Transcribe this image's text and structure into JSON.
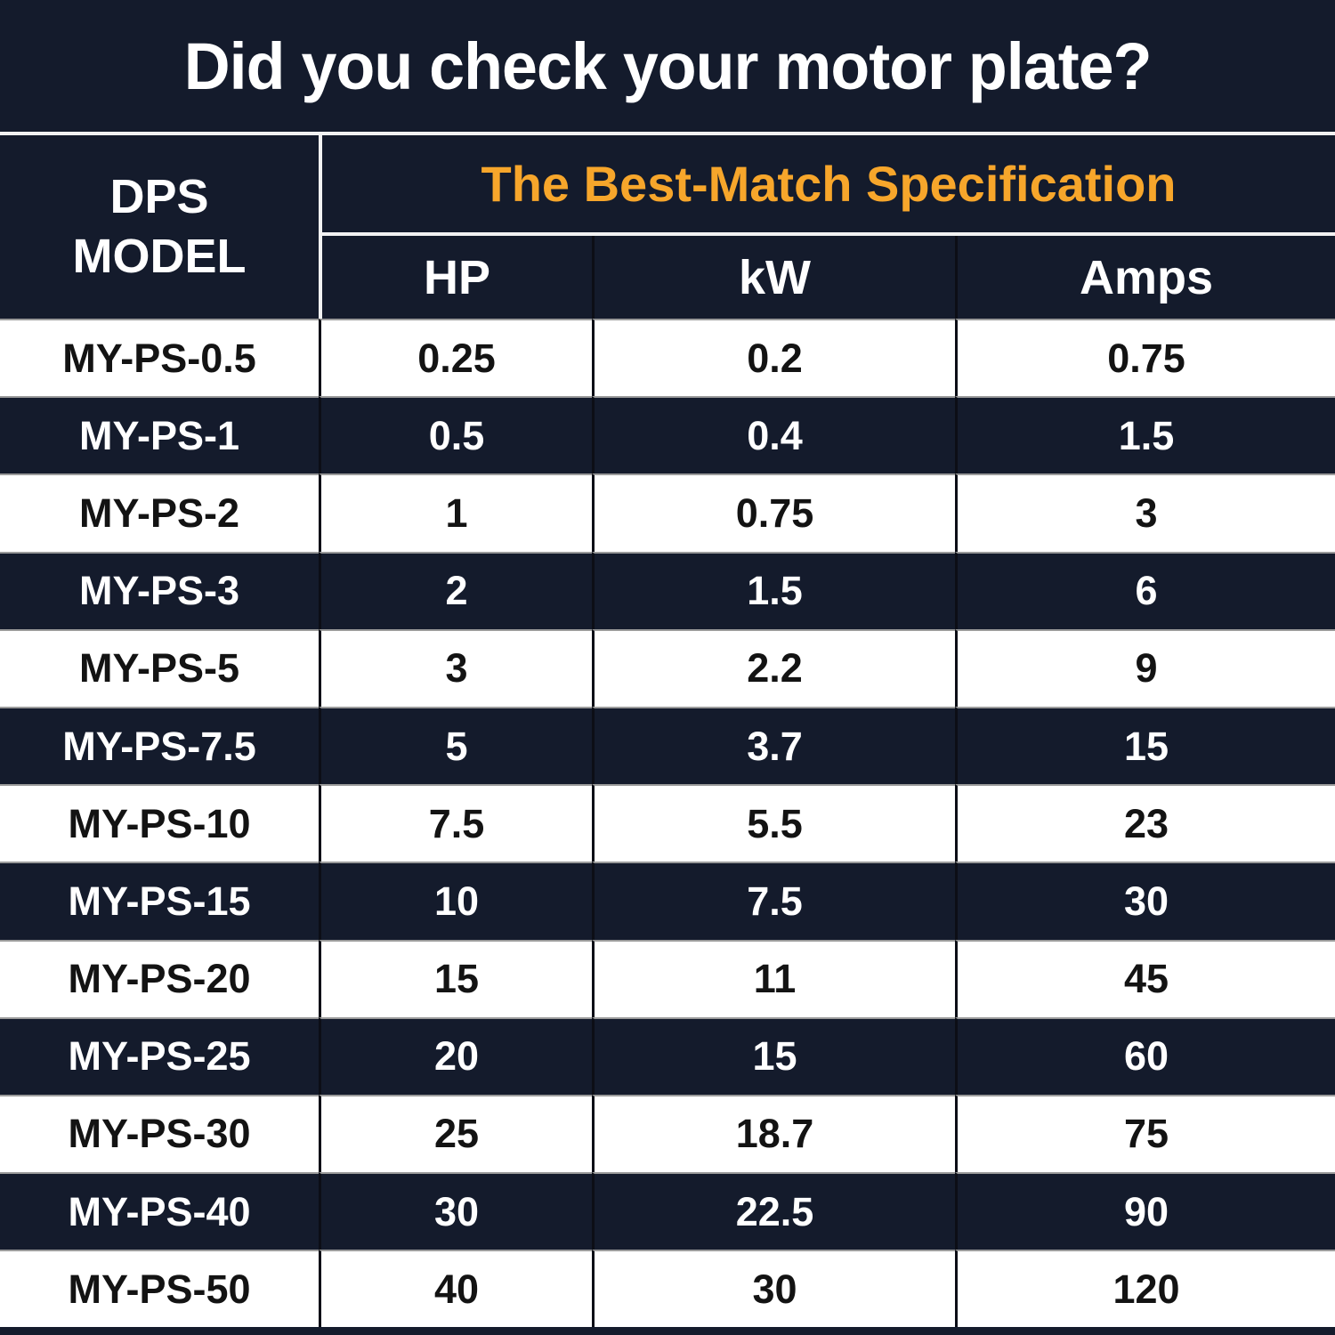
{
  "header": {
    "title": "Did you check your motor plate?"
  },
  "table": {
    "model_header": "DPS\nMODEL",
    "spec_header": "The Best-Match Specification",
    "columns": {
      "hp": "HP",
      "kw": "kW",
      "amps": "Amps"
    }
  },
  "chart_data": {
    "type": "table",
    "title": "Did you check your motor plate?",
    "group_header": "The Best-Match Specification",
    "columns": [
      "DPS MODEL",
      "HP",
      "kW",
      "Amps"
    ],
    "rows": [
      {
        "model": "MY-PS-0.5",
        "hp": "0.25",
        "kw": "0.2",
        "amps": "0.75"
      },
      {
        "model": "MY-PS-1",
        "hp": "0.5",
        "kw": "0.4",
        "amps": "1.5"
      },
      {
        "model": "MY-PS-2",
        "hp": "1",
        "kw": "0.75",
        "amps": "3"
      },
      {
        "model": "MY-PS-3",
        "hp": "2",
        "kw": "1.5",
        "amps": "6"
      },
      {
        "model": "MY-PS-5",
        "hp": "3",
        "kw": "2.2",
        "amps": "9"
      },
      {
        "model": "MY-PS-7.5",
        "hp": "5",
        "kw": "3.7",
        "amps": "15"
      },
      {
        "model": "MY-PS-10",
        "hp": "7.5",
        "kw": "5.5",
        "amps": "23"
      },
      {
        "model": "MY-PS-15",
        "hp": "10",
        "kw": "7.5",
        "amps": "30"
      },
      {
        "model": "MY-PS-20",
        "hp": "15",
        "kw": "11",
        "amps": "45"
      },
      {
        "model": "MY-PS-25",
        "hp": "20",
        "kw": "15",
        "amps": "60"
      },
      {
        "model": "MY-PS-30",
        "hp": "25",
        "kw": "18.7",
        "amps": "75"
      },
      {
        "model": "MY-PS-40",
        "hp": "30",
        "kw": "22.5",
        "amps": "90"
      },
      {
        "model": "MY-PS-50",
        "hp": "40",
        "kw": "30",
        "amps": "120"
      }
    ],
    "layout": {
      "row_striping": [
        "white",
        "navy"
      ],
      "grid": "on",
      "header_rows": 2
    }
  },
  "colors": {
    "background_navy": "#141B2C",
    "accent_orange": "#F7A62B",
    "row_light": "#FFFFFF",
    "light_text": "#FFFFFF",
    "dark_text": "#131313",
    "row_divider_gray": "#9B9B9B",
    "column_divider_black": "#0C0E16",
    "header_divider_white": "#F2F2F2"
  }
}
